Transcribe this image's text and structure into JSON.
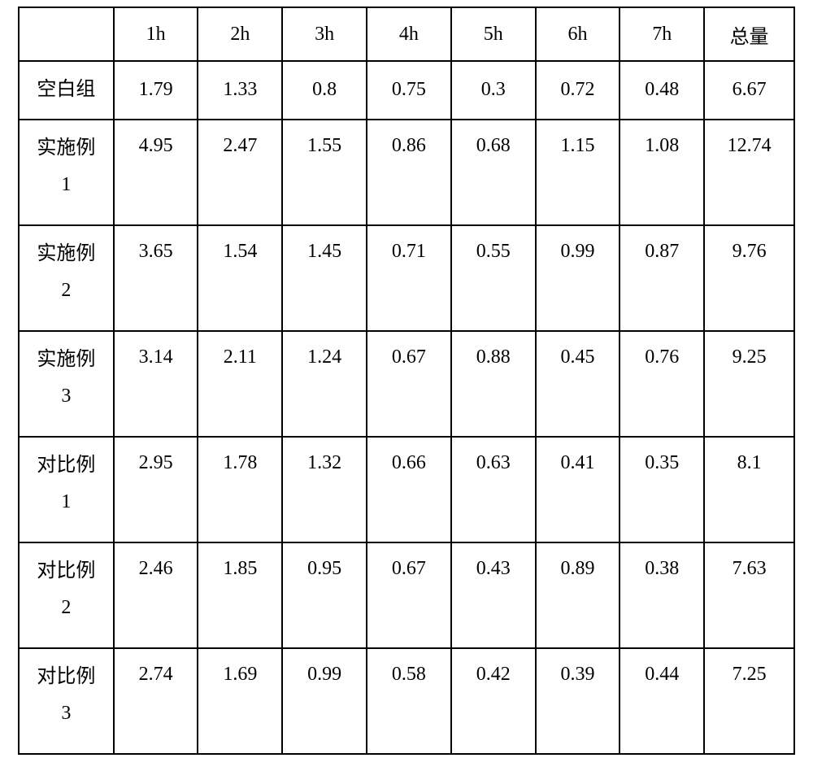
{
  "table": {
    "columns": [
      {
        "key": "label",
        "header": "",
        "width_class": "col-label"
      },
      {
        "key": "h1",
        "header": "1h",
        "width_class": "col-data"
      },
      {
        "key": "h2",
        "header": "2h",
        "width_class": "col-data"
      },
      {
        "key": "h3",
        "header": "3h",
        "width_class": "col-data"
      },
      {
        "key": "h4",
        "header": "4h",
        "width_class": "col-data"
      },
      {
        "key": "h5",
        "header": "5h",
        "width_class": "col-data"
      },
      {
        "key": "h6",
        "header": "6h",
        "width_class": "col-data"
      },
      {
        "key": "h7",
        "header": "7h",
        "width_class": "col-data"
      },
      {
        "key": "total",
        "header": "总量",
        "width_class": "col-total"
      }
    ],
    "rows": [
      {
        "label_line1": "空白组",
        "label_line2": "",
        "row_class": "row-single",
        "h1": "1.79",
        "h2": "1.33",
        "h3": "0.8",
        "h4": "0.75",
        "h5": "0.3",
        "h6": "0.72",
        "h7": "0.48",
        "total": "6.67"
      },
      {
        "label_line1": "实施例",
        "label_line2": "1",
        "row_class": "row-double",
        "h1": "4.95",
        "h2": "2.47",
        "h3": "1.55",
        "h4": "0.86",
        "h5": "0.68",
        "h6": "1.15",
        "h7": "1.08",
        "total": "12.74"
      },
      {
        "label_line1": "实施例",
        "label_line2": "2",
        "row_class": "row-double",
        "h1": "3.65",
        "h2": "1.54",
        "h3": "1.45",
        "h4": "0.71",
        "h5": "0.55",
        "h6": "0.99",
        "h7": "0.87",
        "total": "9.76"
      },
      {
        "label_line1": "实施例",
        "label_line2": "3",
        "row_class": "row-double",
        "h1": "3.14",
        "h2": "2.11",
        "h3": "1.24",
        "h4": "0.67",
        "h5": "0.88",
        "h6": "0.45",
        "h7": "0.76",
        "total": "9.25"
      },
      {
        "label_line1": "对比例",
        "label_line2": "1",
        "row_class": "row-double",
        "h1": "2.95",
        "h2": "1.78",
        "h3": "1.32",
        "h4": "0.66",
        "h5": "0.63",
        "h6": "0.41",
        "h7": "0.35",
        "total": "8.1"
      },
      {
        "label_line1": "对比例",
        "label_line2": "2",
        "row_class": "row-double",
        "h1": "2.46",
        "h2": "1.85",
        "h3": "0.95",
        "h4": "0.67",
        "h5": "0.43",
        "h6": "0.89",
        "h7": "0.38",
        "total": "7.63"
      },
      {
        "label_line1": "对比例",
        "label_line2": "3",
        "row_class": "row-double",
        "h1": "2.74",
        "h2": "1.69",
        "h3": "0.99",
        "h4": "0.58",
        "h5": "0.42",
        "h6": "0.39",
        "h7": "0.44",
        "total": "7.25"
      }
    ]
  }
}
